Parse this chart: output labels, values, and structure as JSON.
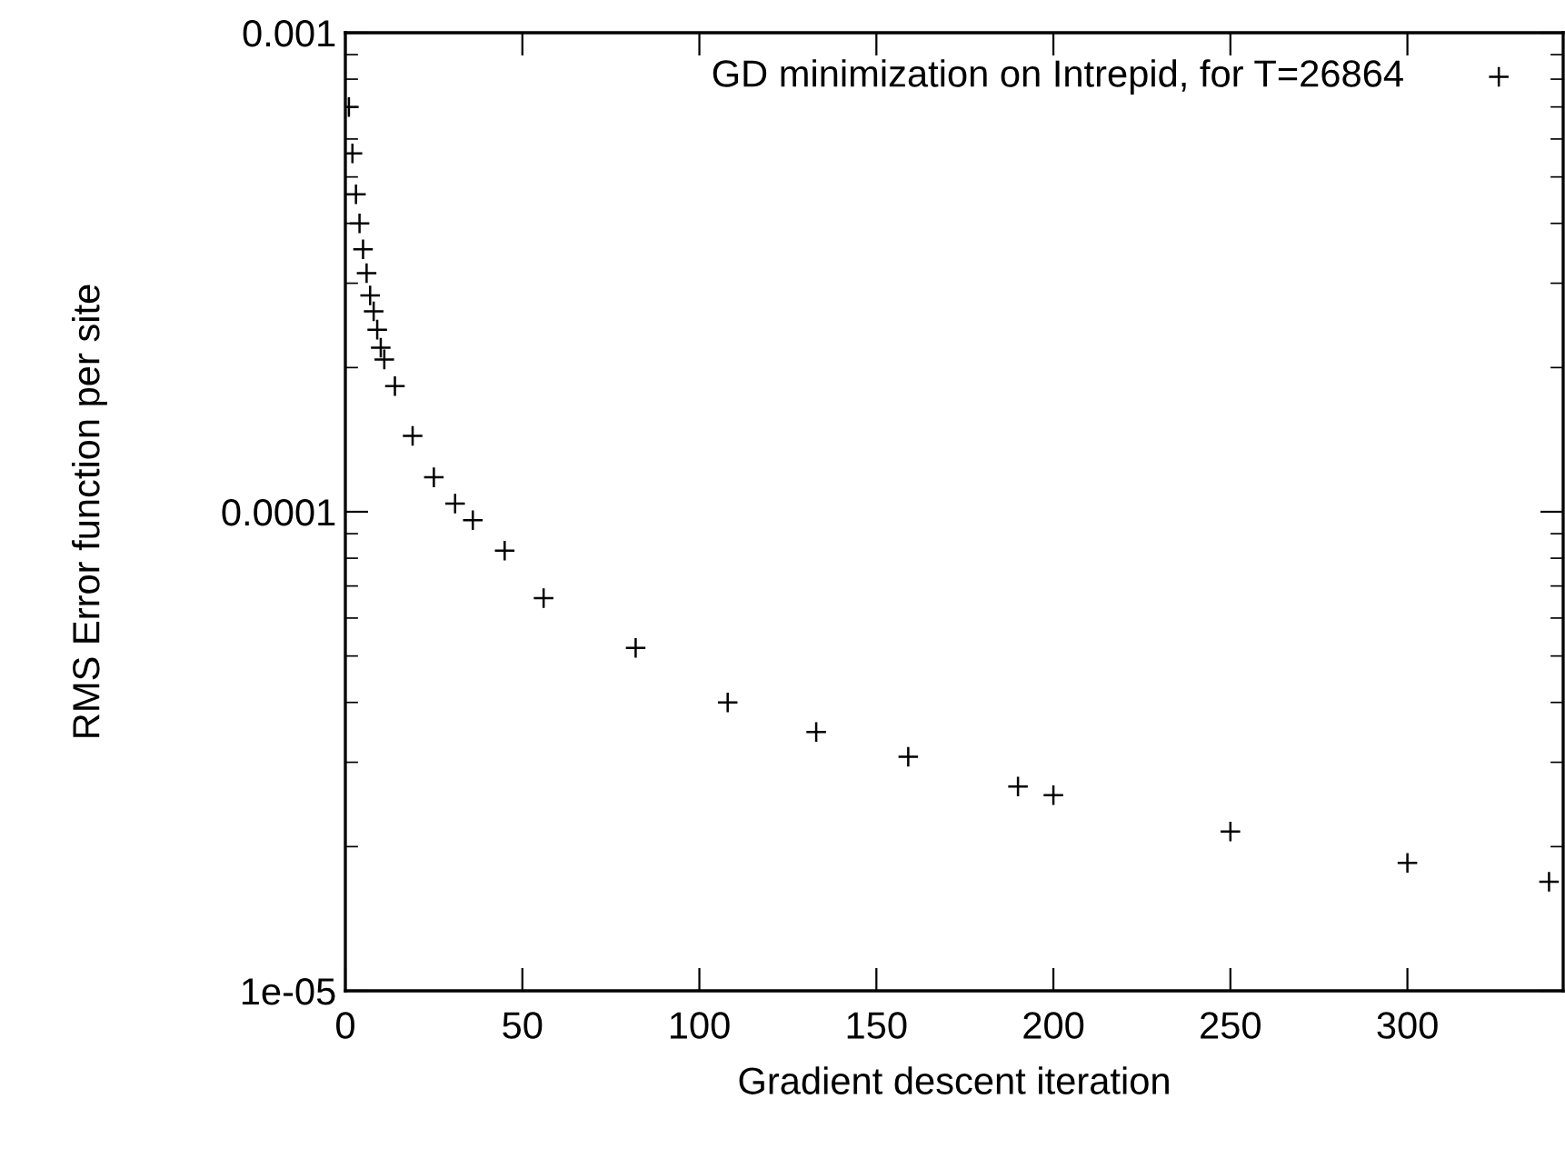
{
  "chart_data": {
    "type": "scatter",
    "xlabel": "Gradient descent iteration",
    "ylabel": "RMS Error function per site",
    "log": "y",
    "legend": "top right",
    "marker": "cross",
    "grid": false,
    "xlim": [
      0,
      344
    ],
    "xticks": [
      0,
      50,
      100,
      150,
      200,
      250,
      300
    ],
    "ylim": [
      1e-05,
      0.001
    ],
    "yticks": [
      {
        "value": 1e-05,
        "label": "1e-05"
      },
      {
        "value": 0.0001,
        "label": "0.0001"
      },
      {
        "value": 0.001,
        "label": "0.001"
      }
    ],
    "series": [
      {
        "name": "GD minimization on Intrepid, for T=26864",
        "color": "#000000",
        "x": [
          1,
          2,
          3,
          4,
          5,
          6,
          7,
          8,
          9,
          10,
          11,
          14,
          19,
          25,
          31,
          36,
          45,
          56,
          82,
          108,
          133,
          159,
          190,
          200,
          250,
          300,
          340
        ],
        "values": [
          0.0007,
          0.00056,
          0.00046,
          0.0004,
          0.000353,
          0.000315,
          0.000283,
          0.000262,
          0.00024,
          0.00022,
          0.000208,
          0.000183,
          0.000144,
          0.000118,
          0.000104,
          9.6e-05,
          8.3e-05,
          6.6e-05,
          5.2e-05,
          4e-05,
          3.47e-05,
          3.08e-05,
          2.67e-05,
          2.56e-05,
          2.15e-05,
          1.85e-05,
          1.69e-05
        ]
      }
    ]
  }
}
